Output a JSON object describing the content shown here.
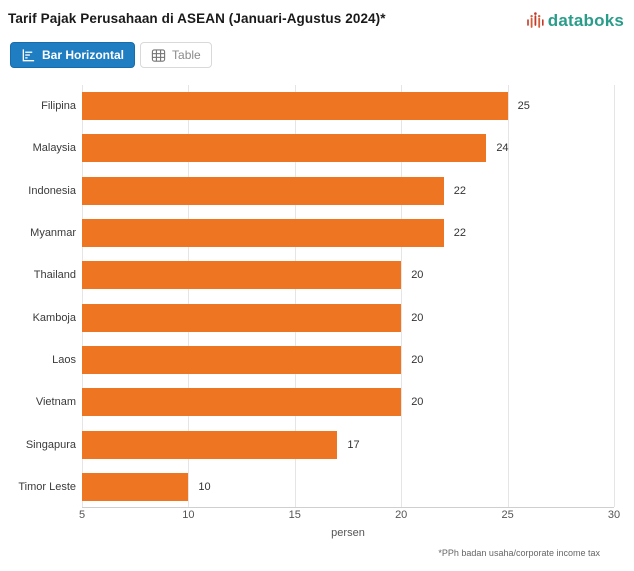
{
  "header": {
    "title": "Tarif Pajak Perusahaan di ASEAN (Januari-Agustus 2024)*",
    "logo_text": "databoks",
    "logo_text_color": "#2A9D8A",
    "logo_icon_colors": [
      "#C03A2B",
      "#D95B35"
    ]
  },
  "toolbar": {
    "bar_horizontal_label": "Bar Horizontal",
    "table_label": "Table",
    "active_button": "Bar Horizontal",
    "active_color": "#1F7DC2"
  },
  "chart_data": {
    "type": "bar",
    "orientation": "horizontal",
    "title": "Tarif Pajak Perusahaan di ASEAN (Januari-Agustus 2024)*",
    "categories": [
      "Filipina",
      "Malaysia",
      "Indonesia",
      "Myanmar",
      "Thailand",
      "Kamboja",
      "Laos",
      "Vietnam",
      "Singapura",
      "Timor Leste"
    ],
    "values": [
      25,
      24,
      22,
      22,
      20,
      20,
      20,
      20,
      17,
      10
    ],
    "xlabel": "persen",
    "ylabel": "",
    "xlim": [
      5,
      30
    ],
    "xticks": [
      5,
      10,
      15,
      20,
      25,
      30
    ],
    "bar_color": "#EE7623",
    "grid": true,
    "legend": false,
    "data_labels": true
  },
  "footnote": "*PPh badan usaha/corporate income tax"
}
